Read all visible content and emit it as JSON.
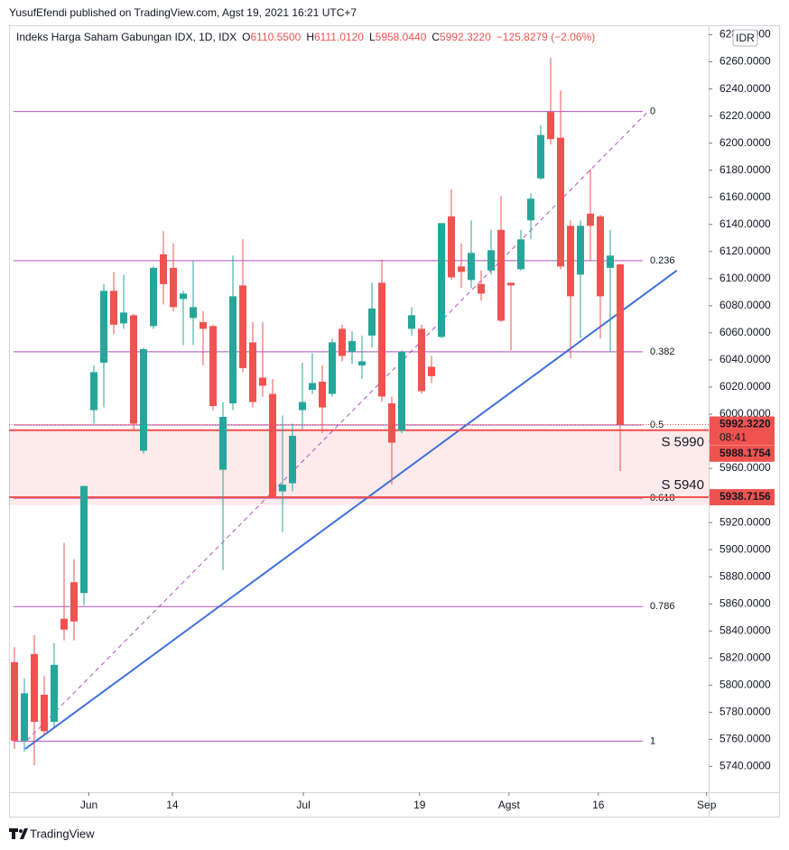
{
  "attribution": "YusufEfendi published on TradingView.com, Agst 19, 2021 16:21 UTC+7",
  "footer": "TradingView",
  "chart_data": {
    "type": "candlestick",
    "title": "Indeks Harga Saham Gabungan IDX, 1D, IDX",
    "header_fields": [
      {
        "key": "O",
        "value": "6110.5500"
      },
      {
        "key": "H",
        "value": "6111.0120"
      },
      {
        "key": "L",
        "value": "5958.0440"
      },
      {
        "key": "C",
        "value": "5992.3220"
      }
    ],
    "change": "−125.8279 (−2.06%)",
    "currency": "IDR",
    "up_color": "#26a69a",
    "down_color": "#ef5350",
    "open": [
      5817,
      5759,
      5823,
      5793,
      5773,
      5849,
      5876,
      5868,
      6003,
      6038,
      6091,
      6067,
      6073,
      5973,
      6065,
      6118,
      6108,
      6085,
      6071,
      6068,
      6065,
      5959,
      6008,
      6095,
      6053,
      6027,
      6015,
      5943,
      5949,
      6003,
      6018,
      6024,
      6015,
      6063,
      6046,
      6036,
      6058,
      6097,
      6008,
      5988,
      6063,
      6063,
      6035,
      6057,
      6146,
      6109,
      6099,
      6096,
      6106,
      6136,
      6097,
      6107,
      6143,
      6174,
      6223,
      6204,
      6139,
      6103,
      6148,
      6146,
      6108,
      6110.55
    ],
    "high": [
      5828,
      5805,
      5837,
      5807,
      5831,
      5905,
      5893,
      5947,
      6036,
      6096,
      6105,
      6103,
      6074,
      6049,
      6109,
      6135,
      6126,
      6091,
      6113,
      6076,
      6066,
      6009,
      6117,
      6129,
      6068,
      6068,
      6026,
      5999,
      5993,
      6038,
      6045,
      6036,
      6056,
      6066,
      6061,
      6058,
      6097,
      6114,
      6013,
      6047,
      6079,
      6066,
      6043,
      6141,
      6166,
      6126,
      6143,
      6106,
      6136,
      6161,
      6097,
      6136,
      6163,
      6213,
      6263,
      6239,
      6143,
      6143,
      6181,
      6147,
      6136,
      6111.012
    ],
    "low": [
      5753,
      5751,
      5741,
      5763,
      5769,
      5833,
      5833,
      5859,
      5993,
      6005,
      6059,
      6063,
      5989,
      5971,
      6063,
      6081,
      6076,
      6051,
      6051,
      6036,
      6003,
      5885,
      6003,
      6031,
      6005,
      6013,
      5939,
      5913,
      5943,
      5989,
      6015,
      5986,
      6013,
      6039,
      6037,
      6026,
      6049,
      6009,
      5948,
      5986,
      6058,
      6015,
      6023,
      6056,
      6099,
      6093,
      6093,
      6084,
      6103,
      6068,
      6047,
      6106,
      6129,
      6173,
      6199,
      6107,
      6041,
      6056,
      6113,
      6056,
      6046,
      5958.044
    ],
    "close": [
      5759,
      5794,
      5773,
      5766,
      5815,
      5841,
      5847,
      5947,
      6031,
      6091,
      6066,
      6075,
      5993,
      6048,
      6108,
      6096,
      6079,
      6089,
      6079,
      6063,
      6006,
      5998,
      6087,
      6034,
      6009,
      6021,
      5939,
      5948,
      5984,
      6009,
      6023,
      6005,
      6053,
      6043,
      6054,
      6039,
      6078,
      6013,
      5979,
      6046,
      6073,
      6017,
      6028,
      6141,
      6101,
      6105,
      6119,
      6089,
      6121,
      6069,
      6095,
      6129,
      6159,
      6206,
      6203,
      6109,
      6087,
      6139,
      6139,
      6087,
      6117,
      5992.322
    ],
    "xticks": [
      {
        "value": 7.5,
        "label": "Jun"
      },
      {
        "value": 15.9,
        "label": "14"
      },
      {
        "value": 29.1,
        "label": "Jul"
      },
      {
        "value": 40.8,
        "label": "19"
      },
      {
        "value": 49.8,
        "label": "Agst"
      },
      {
        "value": 58.8,
        "label": "16"
      },
      {
        "value": 69.7,
        "label": "Sep"
      }
    ],
    "ylim": [
      5721,
      6287
    ],
    "yticks": [
      {
        "value": 5740,
        "label": "5740.0000"
      },
      {
        "value": 5760,
        "label": "5760.0000"
      },
      {
        "value": 5780,
        "label": "5780.0000"
      },
      {
        "value": 5800,
        "label": "5800.0000"
      },
      {
        "value": 5820,
        "label": "5820.0000"
      },
      {
        "value": 5840,
        "label": "5840.0000"
      },
      {
        "value": 5860,
        "label": "5860.0000"
      },
      {
        "value": 5880,
        "label": "5880.0000"
      },
      {
        "value": 5900,
        "label": "5900.0000"
      },
      {
        "value": 5920,
        "label": "5920.0000"
      },
      {
        "value": 5940,
        "label": "5940.0000"
      },
      {
        "value": 5960,
        "label": "5960.0000"
      },
      {
        "value": 5980,
        "label": "5980.0000"
      },
      {
        "value": 6000,
        "label": "6000.0000"
      },
      {
        "value": 6020,
        "label": "6020.0000"
      },
      {
        "value": 6040,
        "label": "6040.0000"
      },
      {
        "value": 6060,
        "label": "6060.0000"
      },
      {
        "value": 6080,
        "label": "6080.0000"
      },
      {
        "value": 6100,
        "label": "6100.0000"
      },
      {
        "value": 6120,
        "label": "6120.0000"
      },
      {
        "value": 6140,
        "label": "6140.0000"
      },
      {
        "value": 6160,
        "label": "6160.0000"
      },
      {
        "value": 6180,
        "label": "6180.0000"
      },
      {
        "value": 6200,
        "label": "6200.0000"
      },
      {
        "value": 6220,
        "label": "6220.0000"
      },
      {
        "value": 6240,
        "label": "6240.0000"
      },
      {
        "value": 6260,
        "label": "6260.0000"
      },
      {
        "value": 6280,
        "label": "6280.0000"
      }
    ],
    "fib_color": "#9c27b0",
    "fib_levels": [
      {
        "label": "0",
        "value": 6223.3
      },
      {
        "label": "0.236",
        "value": 6113.3
      },
      {
        "label": "0.382",
        "value": 6046
      },
      {
        "label": "0.5",
        "value": 5992
      },
      {
        "label": "0.618",
        "value": 5938
      },
      {
        "label": "0.786",
        "value": 5858
      },
      {
        "label": "1",
        "value": 5758.7
      }
    ],
    "trend_line": {
      "color": "#3f6fe0",
      "x": [
        1.09,
        66.7
      ],
      "values": [
        5753,
        6106
      ]
    },
    "fib_diagonal": {
      "x": [
        1.27,
        63.8
      ],
      "values": [
        5759.3,
        6223.3
      ]
    },
    "zone": {
      "color": "#ef5350",
      "values": [
        5933,
        5989
      ]
    },
    "support_levels": [
      {
        "label": "S 5990",
        "value": 5988.1754
      },
      {
        "label": "S 5940",
        "value": 5938.7156
      }
    ],
    "last_price_label": "5992.3220",
    "countdown": "08:41"
  }
}
